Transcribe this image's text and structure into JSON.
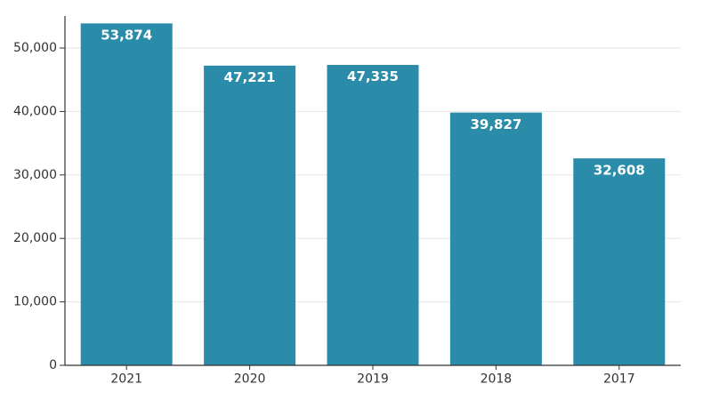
{
  "colors": {
    "bar": "#2a8ca8",
    "axis": "#333333",
    "grid": "#e6e6e6",
    "label_text": "#ffffff",
    "background": "#ffffff"
  },
  "chart_data": {
    "type": "bar",
    "title": "",
    "xlabel": "",
    "ylabel": "",
    "categories": [
      "2021",
      "2020",
      "2019",
      "2018",
      "2017"
    ],
    "values": [
      53874,
      47221,
      47335,
      39827,
      32608
    ],
    "value_labels": [
      "53,874",
      "47,221",
      "47,335",
      "39,827",
      "32,608"
    ],
    "ylim": [
      0,
      55000
    ],
    "yticks": [
      0,
      10000,
      20000,
      30000,
      40000,
      50000
    ],
    "ytick_labels": [
      "0",
      "10,000",
      "20,000",
      "30,000",
      "40,000",
      "50,000"
    ],
    "grid": true,
    "legend": "none"
  }
}
